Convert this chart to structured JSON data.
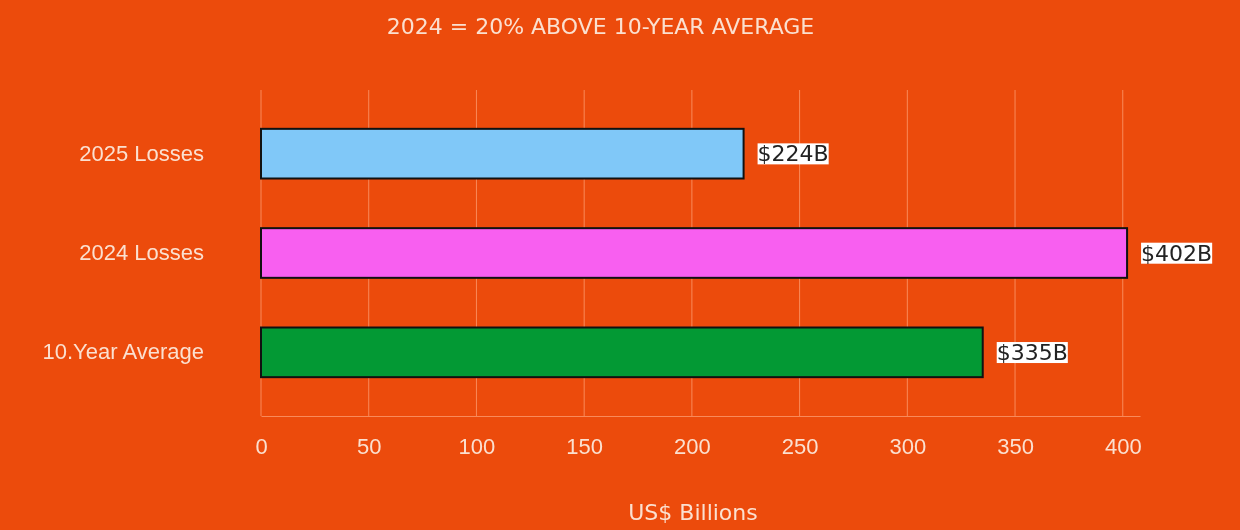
{
  "chart_data": {
    "type": "bar",
    "orientation": "horizontal",
    "title": "2024 = 20% ABOVE 10-YEAR AVERAGE",
    "xlabel": "US$ Billions",
    "categories": [
      "2025 Losses",
      "2024 Losses",
      "10.Year Average"
    ],
    "values": [
      224,
      402,
      335
    ],
    "colors": [
      "#80c8f8",
      "#f85ff0",
      "#039934"
    ],
    "value_labels": [
      "$224B",
      "$402B",
      "$335B"
    ],
    "xlim": [
      0,
      408
    ],
    "xticks": [
      0,
      50,
      100,
      150,
      200,
      250,
      300,
      350,
      400
    ],
    "grid": "x"
  }
}
